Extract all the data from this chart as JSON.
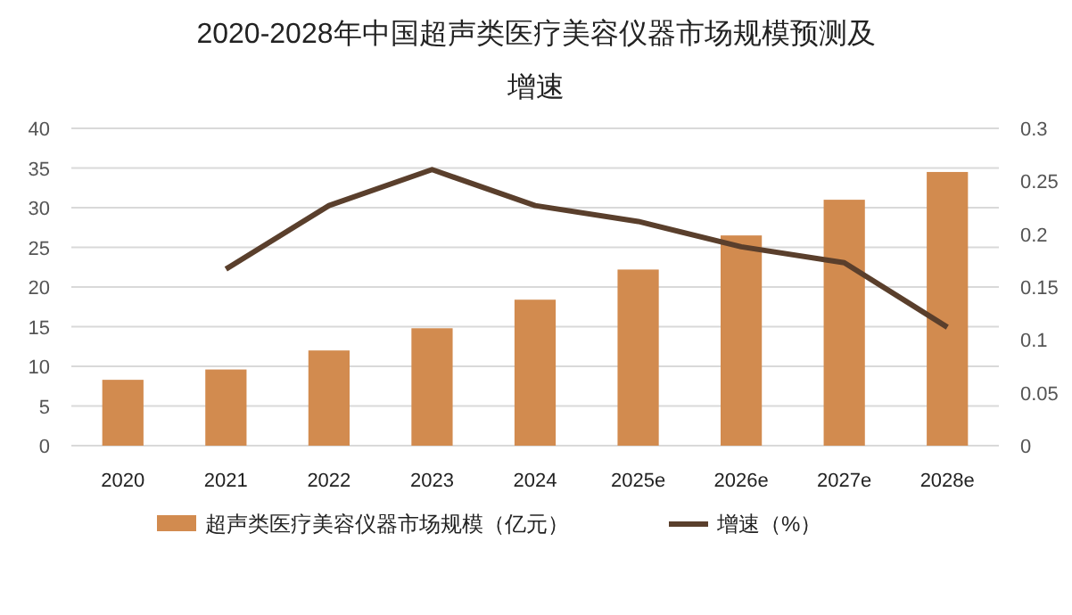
{
  "chart_data": {
    "type": "bar",
    "title": "2020-2028年中国超声类医疗美容仪器市场规模预测及增速",
    "categories": [
      "2020",
      "2021",
      "2022",
      "2023",
      "2024",
      "2025e",
      "2026e",
      "2027e",
      "2028e"
    ],
    "series": [
      {
        "name": "超声类医疗美容仪器市场规模（亿元）",
        "color": "#d28b4f",
        "values": [
          8.3,
          9.6,
          12.0,
          14.8,
          18.4,
          22.2,
          26.5,
          31.0,
          34.5
        ]
      },
      {
        "name": "增速（%）",
        "type": "line",
        "axis": "y2",
        "color": "#5a3f2c",
        "values": [
          null,
          0.167,
          0.227,
          0.261,
          0.227,
          0.212,
          0.188,
          0.173,
          0.112
        ]
      }
    ],
    "ylim": [
      0,
      40
    ],
    "yticks": [
      0,
      5,
      10,
      15,
      20,
      25,
      30,
      35,
      40
    ],
    "y2lim": [
      0,
      0.3
    ],
    "y2ticks": [
      0,
      0.05,
      0.1,
      0.15,
      0.2,
      0.25,
      0.3
    ],
    "grid": "y",
    "legend": "bottom",
    "marker": "none",
    "line_style": "solid"
  }
}
